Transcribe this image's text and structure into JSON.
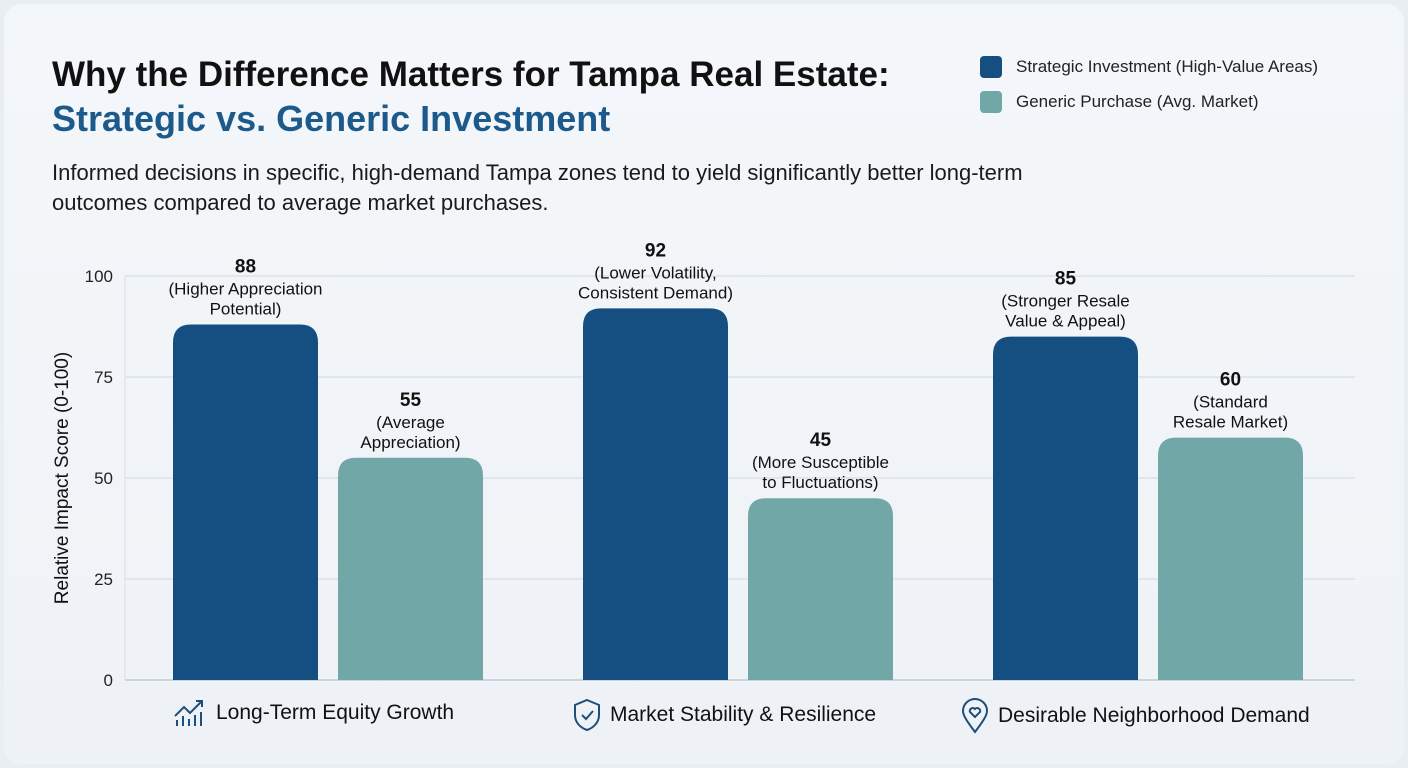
{
  "chart_data": {
    "type": "bar",
    "title": "Why the Difference Matters for Tampa Real Estate:",
    "subtitle": "Strategic vs. Generic Investment",
    "description": "Informed decisions in specific, high-demand Tampa zones tend to yield significantly better long-term outcomes compared to average market purchases.",
    "ylabel": "Relative Impact Score (0-100)",
    "ylim": [
      0,
      100
    ],
    "yticks": [
      "0",
      "25",
      "50",
      "75",
      "100"
    ],
    "categories": [
      "Long-Term Equity Growth",
      "Market Stability & Resilience",
      "Desirable Neighborhood Demand"
    ],
    "category_icons": [
      "chart-growth-icon",
      "shield-check-icon",
      "location-heart-icon"
    ],
    "legend_position": "top-right",
    "series": [
      {
        "name": "Strategic Investment (High-Value Areas)",
        "color": "#154f82",
        "values": [
          88,
          92,
          85
        ],
        "labels": [
          "(Higher Appreciation Potential)",
          "(Lower Volatility, Consistent Demand)",
          "(Stronger Resale Value & Appeal)"
        ],
        "label_lines": [
          [
            "(Higher Appreciation",
            "Potential)"
          ],
          [
            "(Lower Volatility,",
            "Consistent Demand)"
          ],
          [
            "(Stronger Resale",
            "Value & Appeal)"
          ]
        ]
      },
      {
        "name": "Generic Purchase (Avg. Market)",
        "color": "#72a7a8",
        "values": [
          55,
          45,
          60
        ],
        "labels": [
          "(Average Appreciation)",
          "(More Susceptible to Fluctuations)",
          "(Standard Resale Market)"
        ],
        "label_lines": [
          [
            "(Average",
            "Appreciation)"
          ],
          [
            "(More Susceptible",
            "to Fluctuations)"
          ],
          [
            "(Standard",
            "Resale Market)"
          ]
        ]
      }
    ]
  }
}
